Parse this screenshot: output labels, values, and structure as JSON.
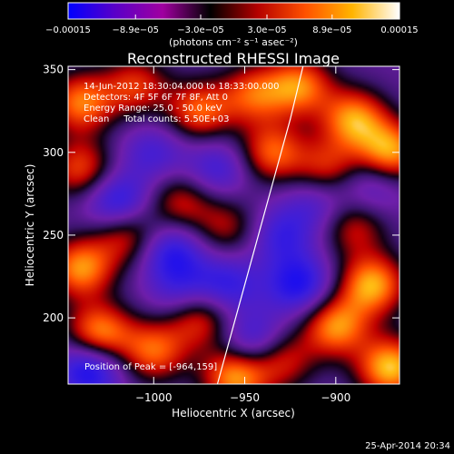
{
  "chart_data": {
    "type": "heatmap",
    "title": "Reconstructed RHESSI Image",
    "xlabel": "Heliocentric X (arcsec)",
    "ylabel": "Heliocentric Y (arcsec)",
    "xlim": [
      -1047,
      -865
    ],
    "ylim": [
      160,
      352
    ],
    "x_ticks": [
      -1000,
      -950,
      -900
    ],
    "x_tick_labels": [
      "−1000",
      "−950",
      "−900"
    ],
    "y_ticks": [
      200,
      250,
      300,
      350
    ],
    "y_tick_labels": [
      "200",
      "250",
      "300",
      "350"
    ],
    "colorbar": {
      "range": [
        -0.00015,
        0.00015
      ],
      "ticks": [
        -0.00015,
        -8.9e-05,
        -3e-05,
        3e-05,
        8.9e-05,
        0.00015
      ],
      "tick_labels": [
        "−0.00015",
        "−8.9e−05",
        "−3.0e−05",
        "3.0e−05",
        "8.9e−05",
        "0.00015"
      ],
      "unit_label": "(photons cm⁻² s⁻¹ asec⁻²)",
      "colors": [
        "#0000ff",
        "#5a00c8",
        "#a000a0",
        "#000000",
        "#b40000",
        "#ff5000",
        "#ffb400",
        "#ffffff"
      ]
    },
    "annotations": [
      "14-Jun-2012 18:30:04.000 to 18:33:00.000",
      "Detectors: 4F 5F 6F 7F 8F, Att 0",
      "Energy Range: 25.0 - 50.0 keV",
      "Clean     Total counts: 5.50E+03"
    ],
    "peak_label": "Position of Peak = [-964,159]",
    "limb_points": [
      [
        -965,
        160
      ],
      [
        -955,
        200
      ],
      [
        -945,
        240
      ],
      [
        -935,
        280
      ],
      [
        -925,
        320
      ],
      [
        -918,
        352
      ]
    ],
    "blobs": [
      {
        "x": -1040,
        "y": 330,
        "v": 0.00012
      },
      {
        "x": -1010,
        "y": 340,
        "v": 9e-05
      },
      {
        "x": -975,
        "y": 325,
        "v": 0.00011
      },
      {
        "x": -945,
        "y": 335,
        "v": 0.0001
      },
      {
        "x": -920,
        "y": 340,
        "v": 0.00012
      },
      {
        "x": -890,
        "y": 320,
        "v": 0.00013
      },
      {
        "x": -870,
        "y": 300,
        "v": 0.00014
      },
      {
        "x": -905,
        "y": 290,
        "v": 9e-05
      },
      {
        "x": -935,
        "y": 300,
        "v": 0.00011
      },
      {
        "x": -1040,
        "y": 290,
        "v": 0.0001
      },
      {
        "x": -1015,
        "y": 250,
        "v": 9e-05
      },
      {
        "x": -985,
        "y": 270,
        "v": 8e-05
      },
      {
        "x": -960,
        "y": 255,
        "v": 7e-05
      },
      {
        "x": -1040,
        "y": 230,
        "v": 0.00013
      },
      {
        "x": -1030,
        "y": 190,
        "v": 0.00014
      },
      {
        "x": -1000,
        "y": 180,
        "v": 0.00011
      },
      {
        "x": -975,
        "y": 200,
        "v": 0.0001
      },
      {
        "x": -955,
        "y": 165,
        "v": 0.00014
      },
      {
        "x": -930,
        "y": 175,
        "v": 9e-05
      },
      {
        "x": -900,
        "y": 195,
        "v": 0.00013
      },
      {
        "x": -880,
        "y": 220,
        "v": 0.00014
      },
      {
        "x": -870,
        "y": 170,
        "v": 0.00015
      },
      {
        "x": -890,
        "y": 255,
        "v": 8e-05
      },
      {
        "x": -1000,
        "y": 300,
        "v": -6e-05
      },
      {
        "x": -1020,
        "y": 270,
        "v": -0.0001
      },
      {
        "x": -990,
        "y": 240,
        "v": -9e-05
      },
      {
        "x": -960,
        "y": 220,
        "v": -8e-05
      },
      {
        "x": -930,
        "y": 250,
        "v": -7e-05
      },
      {
        "x": -920,
        "y": 220,
        "v": -0.0001
      },
      {
        "x": -910,
        "y": 270,
        "v": -6e-05
      },
      {
        "x": -1035,
        "y": 170,
        "v": -0.00012
      },
      {
        "x": -965,
        "y": 290,
        "v": -7e-05
      },
      {
        "x": -880,
        "y": 280,
        "v": -6e-05
      },
      {
        "x": -945,
        "y": 185,
        "v": -9e-05
      },
      {
        "x": -985,
        "y": 215,
        "v": -6e-05
      }
    ]
  },
  "footer": {
    "timestamp": "25-Apr-2014 20:34"
  }
}
